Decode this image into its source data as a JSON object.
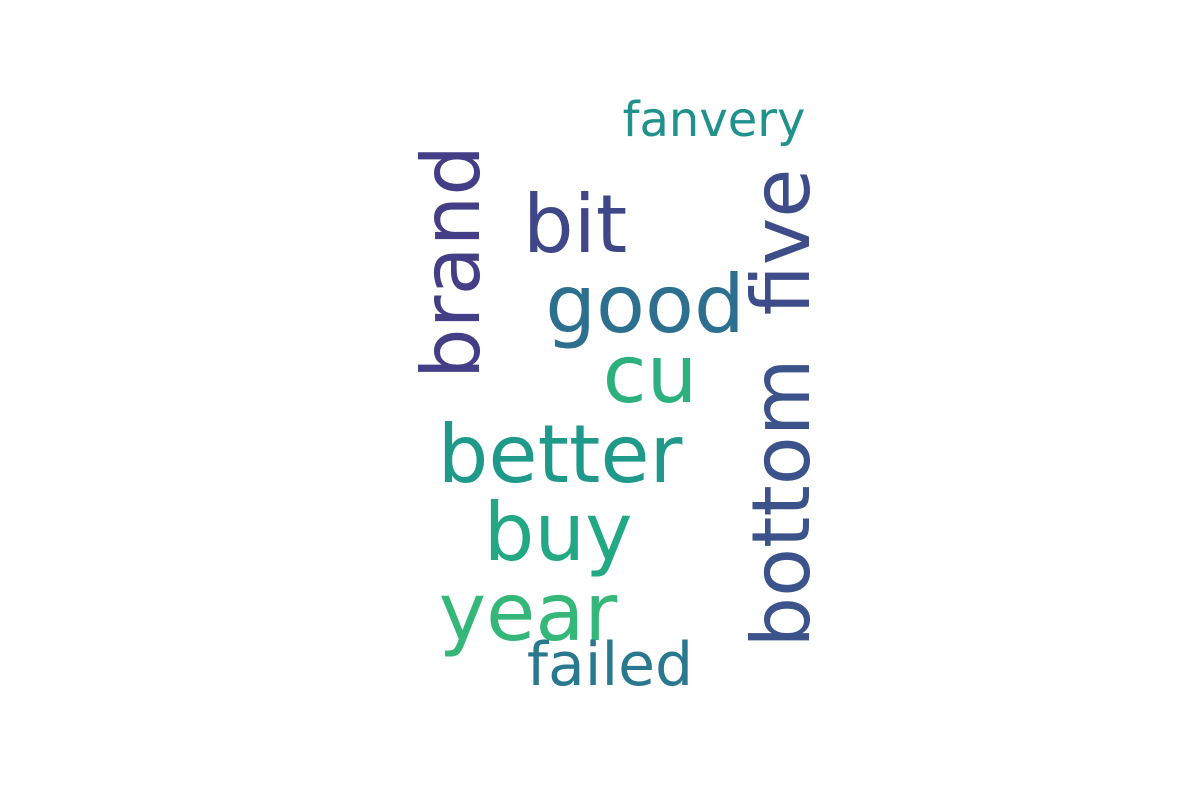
{
  "words": [
    {
      "text": "fanvery",
      "color": "#21918c"
    },
    {
      "text": "brand",
      "color": "#433e85"
    },
    {
      "text": "bit",
      "color": "#3f4788"
    },
    {
      "text": "good",
      "color": "#2d6f8e"
    },
    {
      "text": "five",
      "color": "#3e4c8a"
    },
    {
      "text": "cu",
      "color": "#2cb17e"
    },
    {
      "text": "better",
      "color": "#1f9a8a"
    },
    {
      "text": "bottom",
      "color": "#3b528b"
    },
    {
      "text": "buy",
      "color": "#22a884"
    },
    {
      "text": "year",
      "color": "#35b779"
    },
    {
      "text": "failed",
      "color": "#2a788e"
    }
  ]
}
